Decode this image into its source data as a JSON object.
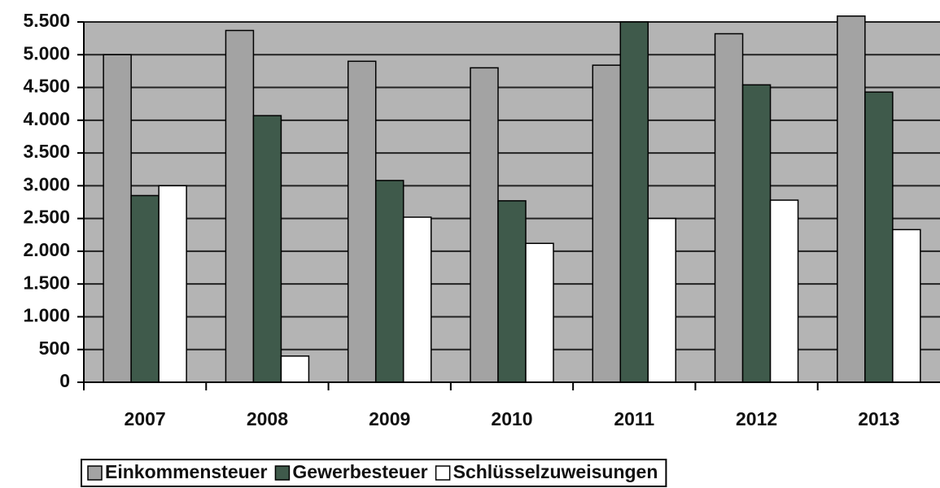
{
  "chart_data": {
    "type": "bar",
    "categories": [
      "2007",
      "2008",
      "2009",
      "2010",
      "2011",
      "2012",
      "2013"
    ],
    "series": [
      {
        "name": "Einkommensteuer",
        "color": "#a3a3a3",
        "values": [
          5000,
          5370,
          4900,
          4800,
          4840,
          5320,
          5590
        ]
      },
      {
        "name": "Gewerbesteuer",
        "color": "#3f5a4b",
        "values": [
          2850,
          4070,
          3080,
          2770,
          5500,
          4540,
          4430
        ]
      },
      {
        "name": "Schlüsselzuweisungen",
        "color": "#ffffff",
        "values": [
          3000,
          400,
          2520,
          2120,
          2500,
          2780,
          2330
        ]
      }
    ],
    "ylim": [
      0,
      5500
    ],
    "yticks": [
      0,
      500,
      {
        "value": 1000,
        "label": "1.000"
      },
      {
        "value": 1500,
        "label": "1.500"
      },
      {
        "value": 2000,
        "label": "2.000"
      },
      {
        "value": 2500,
        "label": "2.500"
      },
      {
        "value": 3000,
        "label": "3.000"
      },
      {
        "value": 3500,
        "label": "3.500"
      },
      {
        "value": 4000,
        "label": "4.000"
      },
      {
        "value": 4500,
        "label": "4.500"
      },
      {
        "value": 5000,
        "label": "5.000"
      },
      {
        "value": 5500,
        "label": "5.500"
      }
    ],
    "grid": true,
    "legend": "bottom"
  }
}
